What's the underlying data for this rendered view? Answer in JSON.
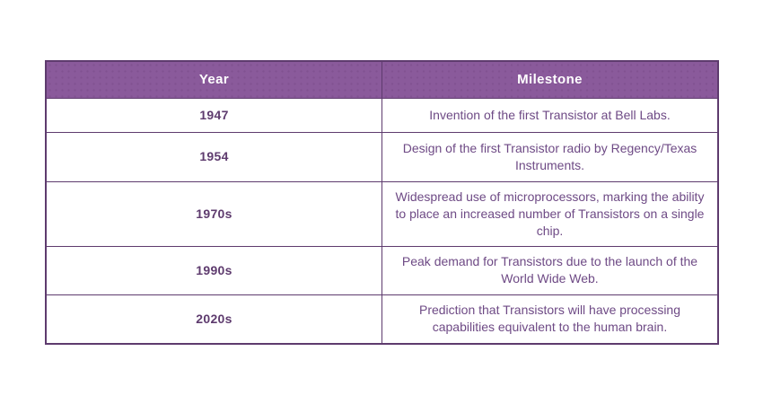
{
  "table": {
    "headers": [
      "Year",
      "Milestone"
    ],
    "rows": [
      {
        "year": "1947",
        "milestone": "Invention of the first Transistor at Bell Labs."
      },
      {
        "year": "1954",
        "milestone": "Design of the first Transistor radio by Regency/Texas Instruments."
      },
      {
        "year": "1970s",
        "milestone": "Widespread use of microprocessors, marking the ability to place an increased number of Transistors on a single chip."
      },
      {
        "year": "1990s",
        "milestone": "Peak demand for Transistors due to the launch of the World Wide Web."
      },
      {
        "year": "2020s",
        "milestone": "Prediction that Transistors will have processing capabilities equivalent to the human brain."
      }
    ],
    "colors": {
      "header_bg": "#8a5a9b",
      "header_text": "#ffffff",
      "border": "#5e3b6e",
      "year_text": "#5e3b6e",
      "milestone_text": "#6e4a85",
      "page_bg": "#ffffff"
    }
  },
  "chart_data": {
    "type": "table",
    "title": "",
    "columns": [
      "Year",
      "Milestone"
    ],
    "rows": [
      [
        "1947",
        "Invention of the first Transistor at Bell Labs."
      ],
      [
        "1954",
        "Design of the first Transistor radio by Regency/Texas Instruments."
      ],
      [
        "1970s",
        "Widespread use of microprocessors, marking the ability to place an increased number of Transistors on a single chip."
      ],
      [
        "1990s",
        "Peak demand for Transistors due to the launch of the World Wide Web."
      ],
      [
        "2020s",
        "Prediction that Transistors will have processing capabilities equivalent to the human brain."
      ]
    ],
    "layout": {
      "header_style": "solid purple fill, white bold text, subtle dot texture",
      "body_style": "white cells, purple text, centered",
      "grid": "on"
    }
  }
}
